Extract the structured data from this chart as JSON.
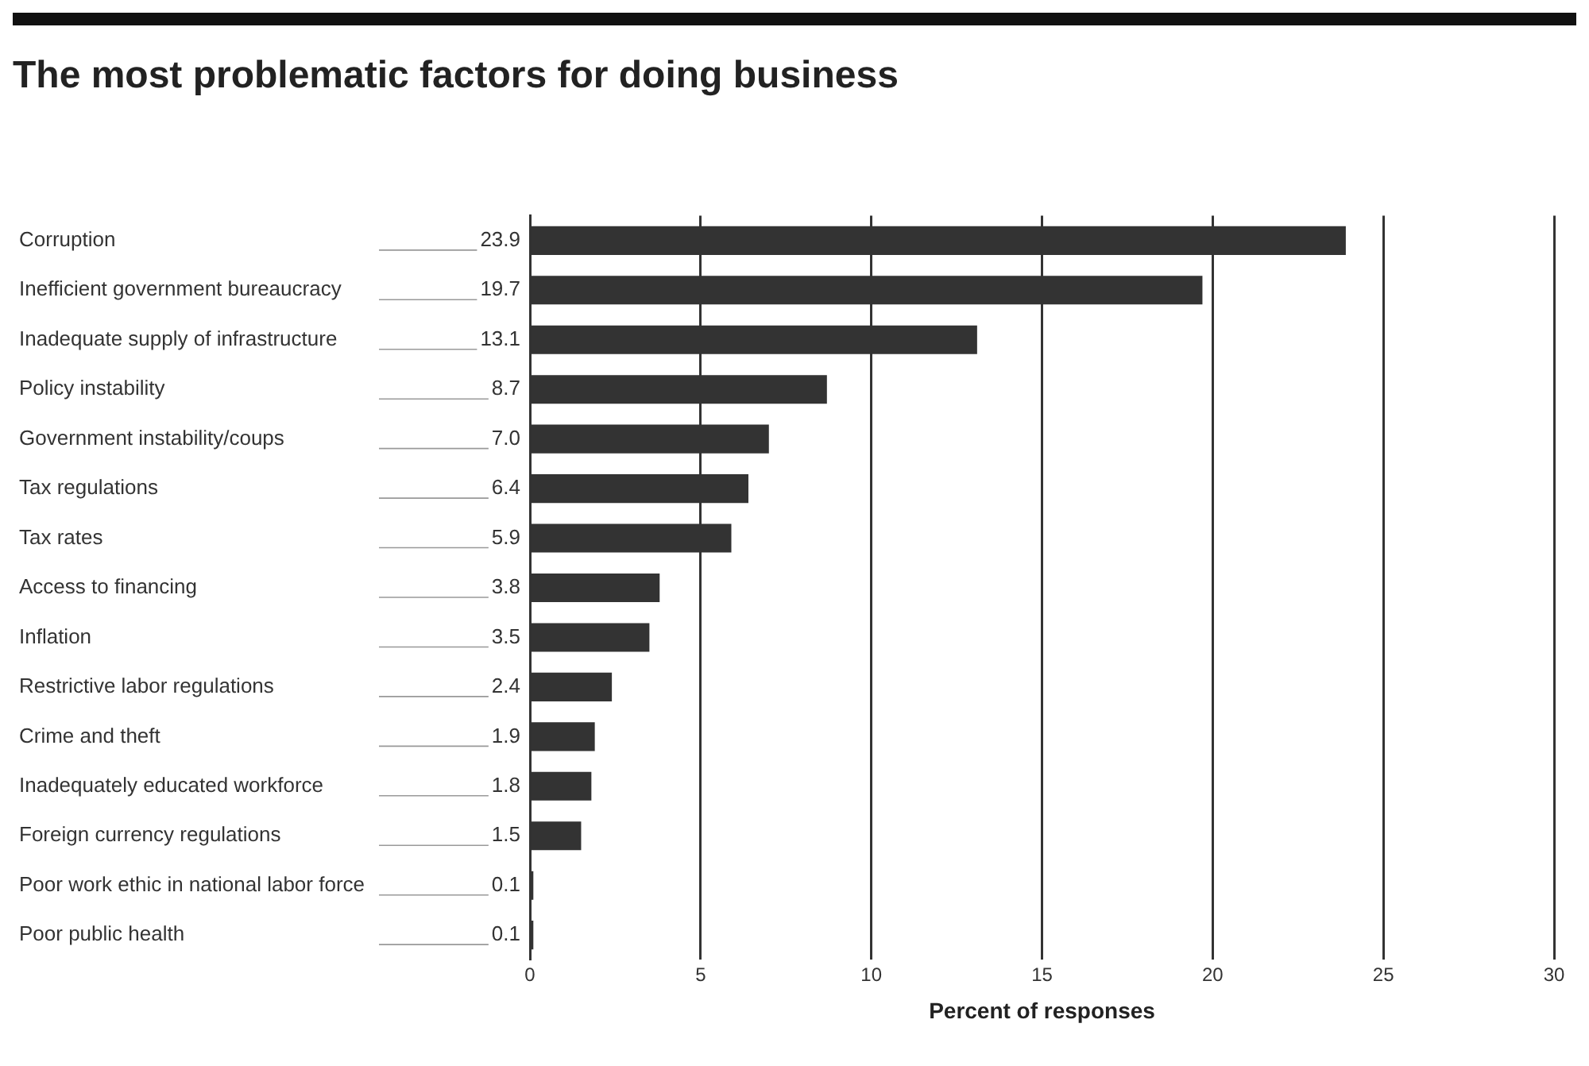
{
  "chart_data": {
    "type": "bar",
    "orientation": "horizontal",
    "title": "The most problematic factors for doing business",
    "xlabel": "Percent of responses",
    "categories": [
      "Corruption",
      "Inefficient government bureaucracy",
      "Inadequate supply of infrastructure",
      "Policy instability",
      "Government instability/coups",
      "Tax regulations",
      "Tax rates",
      "Access to financing",
      "Inflation",
      "Restrictive labor regulations",
      "Crime and theft",
      "Inadequately educated workforce",
      "Foreign currency regulations",
      "Poor work ethic in national labor force",
      "Poor public health"
    ],
    "values": [
      23.9,
      19.7,
      13.1,
      8.7,
      7.0,
      6.4,
      5.9,
      3.8,
      3.5,
      2.4,
      1.9,
      1.8,
      1.5,
      0.1,
      0.1
    ],
    "value_labels": [
      "23.9",
      "19.7",
      "13.1",
      "8.7",
      "7.0",
      "6.4",
      "5.9",
      "3.8",
      "3.5",
      "2.4",
      "1.9",
      "1.8",
      "1.5",
      "0.1",
      "0.1"
    ],
    "color": "#333333",
    "xlim": [
      0,
      30
    ],
    "xticks": [
      0,
      5,
      10,
      15,
      20,
      25,
      30
    ],
    "grid": "x"
  }
}
